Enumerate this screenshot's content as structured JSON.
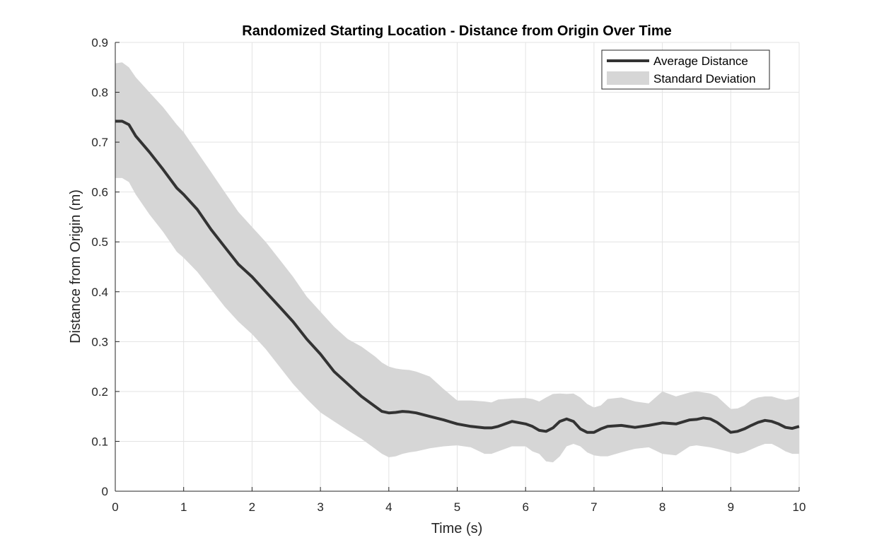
{
  "chart_data": {
    "type": "line",
    "title": "Randomized Starting Location - Distance from Origin Over Time",
    "xlabel": "Time (s)",
    "ylabel": "Distance from Origin (m)",
    "xlim": [
      0,
      10
    ],
    "ylim": [
      0,
      0.9
    ],
    "xticks": [
      "0",
      "1",
      "2",
      "3",
      "4",
      "5",
      "6",
      "7",
      "8",
      "9",
      "10"
    ],
    "yticks": [
      "0",
      "0.1",
      "0.2",
      "0.3",
      "0.4",
      "0.5",
      "0.6",
      "0.7",
      "0.8",
      "0.9"
    ],
    "grid": true,
    "legend_position": "top-right",
    "colors": {
      "line": "#333333",
      "band": "#d6d6d6",
      "grid": "#e3e3e3",
      "axis": "#262626"
    },
    "series": [
      {
        "name": "Average Distance",
        "x": [
          0,
          0.1,
          0.2,
          0.3,
          0.5,
          0.7,
          0.9,
          1.0,
          1.2,
          1.4,
          1.6,
          1.8,
          2.0,
          2.2,
          2.4,
          2.6,
          2.8,
          3.0,
          3.2,
          3.4,
          3.6,
          3.8,
          3.9,
          4.0,
          4.1,
          4.2,
          4.3,
          4.4,
          4.6,
          4.8,
          5.0,
          5.2,
          5.4,
          5.5,
          5.6,
          5.8,
          6.0,
          6.1,
          6.2,
          6.3,
          6.4,
          6.5,
          6.6,
          6.7,
          6.8,
          6.9,
          7.0,
          7.1,
          7.2,
          7.4,
          7.6,
          7.8,
          8.0,
          8.2,
          8.4,
          8.5,
          8.6,
          8.7,
          8.8,
          9.0,
          9.1,
          9.2,
          9.3,
          9.4,
          9.5,
          9.6,
          9.7,
          9.8,
          9.9,
          10.0
        ],
        "values": [
          0.742,
          0.742,
          0.735,
          0.712,
          0.68,
          0.645,
          0.608,
          0.595,
          0.565,
          0.525,
          0.49,
          0.455,
          0.43,
          0.4,
          0.37,
          0.34,
          0.305,
          0.275,
          0.24,
          0.215,
          0.19,
          0.17,
          0.16,
          0.157,
          0.158,
          0.16,
          0.159,
          0.157,
          0.15,
          0.143,
          0.135,
          0.13,
          0.127,
          0.127,
          0.13,
          0.14,
          0.135,
          0.13,
          0.122,
          0.12,
          0.127,
          0.14,
          0.145,
          0.14,
          0.125,
          0.118,
          0.118,
          0.125,
          0.13,
          0.132,
          0.128,
          0.132,
          0.137,
          0.135,
          0.143,
          0.144,
          0.147,
          0.145,
          0.138,
          0.118,
          0.12,
          0.125,
          0.132,
          0.138,
          0.142,
          0.14,
          0.135,
          0.128,
          0.126,
          0.13
        ]
      },
      {
        "name": "Standard Deviation",
        "x": [
          0,
          0.1,
          0.2,
          0.3,
          0.5,
          0.7,
          0.9,
          1.0,
          1.2,
          1.4,
          1.6,
          1.8,
          2.0,
          2.2,
          2.4,
          2.6,
          2.8,
          3.0,
          3.2,
          3.4,
          3.6,
          3.8,
          3.9,
          4.0,
          4.1,
          4.2,
          4.3,
          4.4,
          4.6,
          4.8,
          5.0,
          5.2,
          5.4,
          5.5,
          5.6,
          5.8,
          6.0,
          6.1,
          6.2,
          6.3,
          6.4,
          6.5,
          6.6,
          6.7,
          6.8,
          6.9,
          7.0,
          7.1,
          7.2,
          7.4,
          7.6,
          7.8,
          8.0,
          8.2,
          8.4,
          8.5,
          8.6,
          8.7,
          8.8,
          9.0,
          9.1,
          9.2,
          9.3,
          9.4,
          9.5,
          9.6,
          9.7,
          9.8,
          9.9,
          10.0
        ],
        "upper": [
          0.858,
          0.86,
          0.85,
          0.83,
          0.8,
          0.77,
          0.735,
          0.72,
          0.68,
          0.64,
          0.6,
          0.56,
          0.53,
          0.5,
          0.465,
          0.43,
          0.39,
          0.36,
          0.33,
          0.305,
          0.29,
          0.27,
          0.258,
          0.25,
          0.246,
          0.244,
          0.243,
          0.24,
          0.23,
          0.205,
          0.182,
          0.182,
          0.18,
          0.178,
          0.184,
          0.186,
          0.187,
          0.185,
          0.18,
          0.188,
          0.195,
          0.196,
          0.195,
          0.196,
          0.188,
          0.175,
          0.168,
          0.172,
          0.185,
          0.188,
          0.18,
          0.176,
          0.2,
          0.19,
          0.198,
          0.2,
          0.198,
          0.196,
          0.19,
          0.165,
          0.166,
          0.172,
          0.183,
          0.188,
          0.19,
          0.19,
          0.186,
          0.183,
          0.185,
          0.19
        ],
        "lower": [
          0.628,
          0.628,
          0.62,
          0.595,
          0.555,
          0.52,
          0.48,
          0.468,
          0.44,
          0.405,
          0.37,
          0.34,
          0.315,
          0.285,
          0.25,
          0.215,
          0.185,
          0.158,
          0.14,
          0.122,
          0.105,
          0.085,
          0.075,
          0.068,
          0.07,
          0.075,
          0.078,
          0.08,
          0.086,
          0.09,
          0.092,
          0.088,
          0.075,
          0.075,
          0.08,
          0.09,
          0.09,
          0.08,
          0.075,
          0.06,
          0.058,
          0.07,
          0.09,
          0.095,
          0.09,
          0.078,
          0.072,
          0.07,
          0.07,
          0.078,
          0.085,
          0.088,
          0.075,
          0.072,
          0.09,
          0.092,
          0.09,
          0.088,
          0.085,
          0.078,
          0.075,
          0.078,
          0.084,
          0.09,
          0.095,
          0.095,
          0.088,
          0.08,
          0.075,
          0.075
        ]
      }
    ]
  }
}
